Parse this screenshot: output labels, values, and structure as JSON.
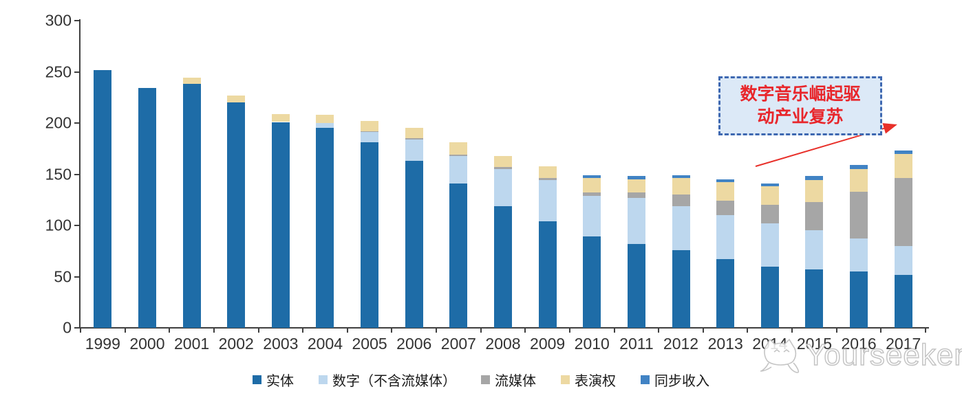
{
  "chart_data": {
    "type": "bar",
    "stacked": true,
    "title": "",
    "xlabel": "",
    "ylabel": "",
    "ylim": [
      0,
      300
    ],
    "yticks": [
      0,
      50,
      100,
      150,
      200,
      250,
      300
    ],
    "grid": false,
    "legend_position": "bottom",
    "x": [
      "1999",
      "2000",
      "2001",
      "2002",
      "2003",
      "2004",
      "2005",
      "2006",
      "2007",
      "2008",
      "2009",
      "2010",
      "2011",
      "2012",
      "2013",
      "2014",
      "2015",
      "2016",
      "2017"
    ],
    "series": [
      {
        "key": "physical",
        "name": "实体",
        "color": "#1e6ca7",
        "values": [
          252,
          234,
          238,
          220,
          201,
          195,
          181,
          163,
          141,
          119,
          104,
          89,
          82,
          76,
          67,
          60,
          57,
          55,
          52
        ]
      },
      {
        "key": "digital-excl-streaming",
        "name": "数字（不含流媒体）",
        "color": "#bdd7ee",
        "values": [
          0,
          0,
          0,
          0,
          0,
          5,
          10,
          21,
          27,
          36,
          40,
          40,
          45,
          43,
          43,
          42,
          38,
          32,
          28
        ]
      },
      {
        "key": "streaming",
        "name": "流媒体",
        "color": "#a6a6a6",
        "values": [
          0,
          0,
          0,
          0,
          0,
          0,
          1,
          1,
          1,
          2,
          2,
          3,
          5,
          11,
          14,
          18,
          28,
          46,
          66
        ]
      },
      {
        "key": "performance-rights",
        "name": "表演权",
        "color": "#edd9a2",
        "values": [
          0,
          0,
          6,
          7,
          8,
          8,
          10,
          10,
          12,
          11,
          12,
          14,
          13,
          16,
          18,
          18,
          21,
          22,
          24
        ]
      },
      {
        "key": "sync-revenue",
        "name": "同步收入",
        "color": "#4183c4",
        "values": [
          0,
          0,
          0,
          0,
          0,
          0,
          0,
          0,
          0,
          0,
          0,
          3,
          3,
          3,
          3,
          3,
          4,
          4,
          3
        ]
      }
    ]
  },
  "annotation": {
    "line1": "数字音乐崛起驱",
    "line2": "动产业复苏",
    "text_color": "#e8262b",
    "box_fill": "#dce9f7",
    "border_color": "#3e68b1",
    "arrow_color": "#e8302a"
  },
  "watermark": {
    "text": "Yourseeker"
  }
}
